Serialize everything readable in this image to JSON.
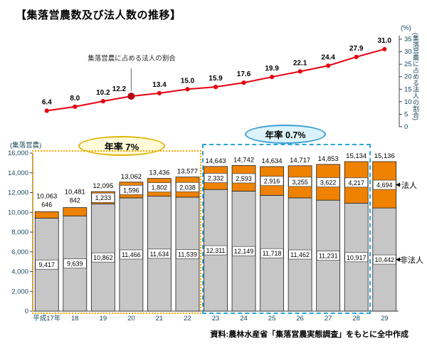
{
  "title": "【集落営農数及び法人数の推移】",
  "source": "資料:農林水産省「集落営農実態調査」をもとに全中作成",
  "labels": {
    "left_axis_unit": "(集落営農)",
    "right_axis_unit": "(%)",
    "right_axis_title": "(集落営農に占める法人の割合)"
  },
  "annotations": {
    "line_callout": "集落営農に占める法人の割合",
    "annual_rate_left": "年率 7%",
    "annual_rate_right": "年率 0.7%"
  },
  "legend": {
    "houjin": "法人",
    "hihoujin": "非法人"
  },
  "colors": {
    "bar_nonlegal": "#c6c6c6",
    "bar_legal": "#ef8200",
    "line": "#e60012",
    "line_highlight_point": "#b50010",
    "axis_text": "#17475c",
    "rate_left_border": "#e0b50a",
    "rate_left_bg": "#fffbd9",
    "rate_right_border": "#3a9fd3",
    "rate_right_bg": "#dcf2fa"
  },
  "chart_data": {
    "type": "bar",
    "subtype": "stacked-bar-with-line-overlay",
    "title": "集落営農数及び法人数の推移",
    "categories": [
      "平成17年",
      "18",
      "19",
      "20",
      "21",
      "22",
      "23",
      "24",
      "25",
      "26",
      "27",
      "28",
      "29"
    ],
    "bar_axis": {
      "ylabel": "(集落営農)",
      "ylim": [
        0,
        16000
      ],
      "yticks": [
        0,
        2000,
        4000,
        6000,
        8000,
        10000,
        12000,
        14000,
        16000
      ]
    },
    "series": [
      {
        "name": "非法人",
        "values": [
          9417,
          9639,
          10862,
          11466,
          11634,
          11539,
          12311,
          12149,
          11718,
          11462,
          11231,
          10917,
          10442
        ]
      },
      {
        "name": "法人",
        "values": [
          646,
          842,
          1233,
          1596,
          1802,
          2038,
          2332,
          2593,
          2916,
          3255,
          3622,
          4217,
          4694
        ]
      }
    ],
    "totals": [
      10063,
      10481,
      12095,
      13062,
      13436,
      13577,
      14643,
      14742,
      14634,
      14717,
      14853,
      15134,
      15136
    ],
    "line": {
      "name": "集落営農に占める法人の割合",
      "unit": "%",
      "ylim": [
        0,
        35
      ],
      "yticks": [
        0,
        5,
        10,
        15,
        20,
        25,
        30,
        35
      ],
      "values": [
        6.4,
        8.0,
        10.2,
        12.2,
        13.4,
        15.0,
        15.9,
        17.6,
        19.9,
        22.1,
        24.4,
        27.9,
        31.0
      ]
    },
    "annotations": [
      "年率 7% (平成17〜22)",
      "年率 0.7% (平成23〜28)"
    ],
    "grid": false,
    "legend_position": "right"
  }
}
